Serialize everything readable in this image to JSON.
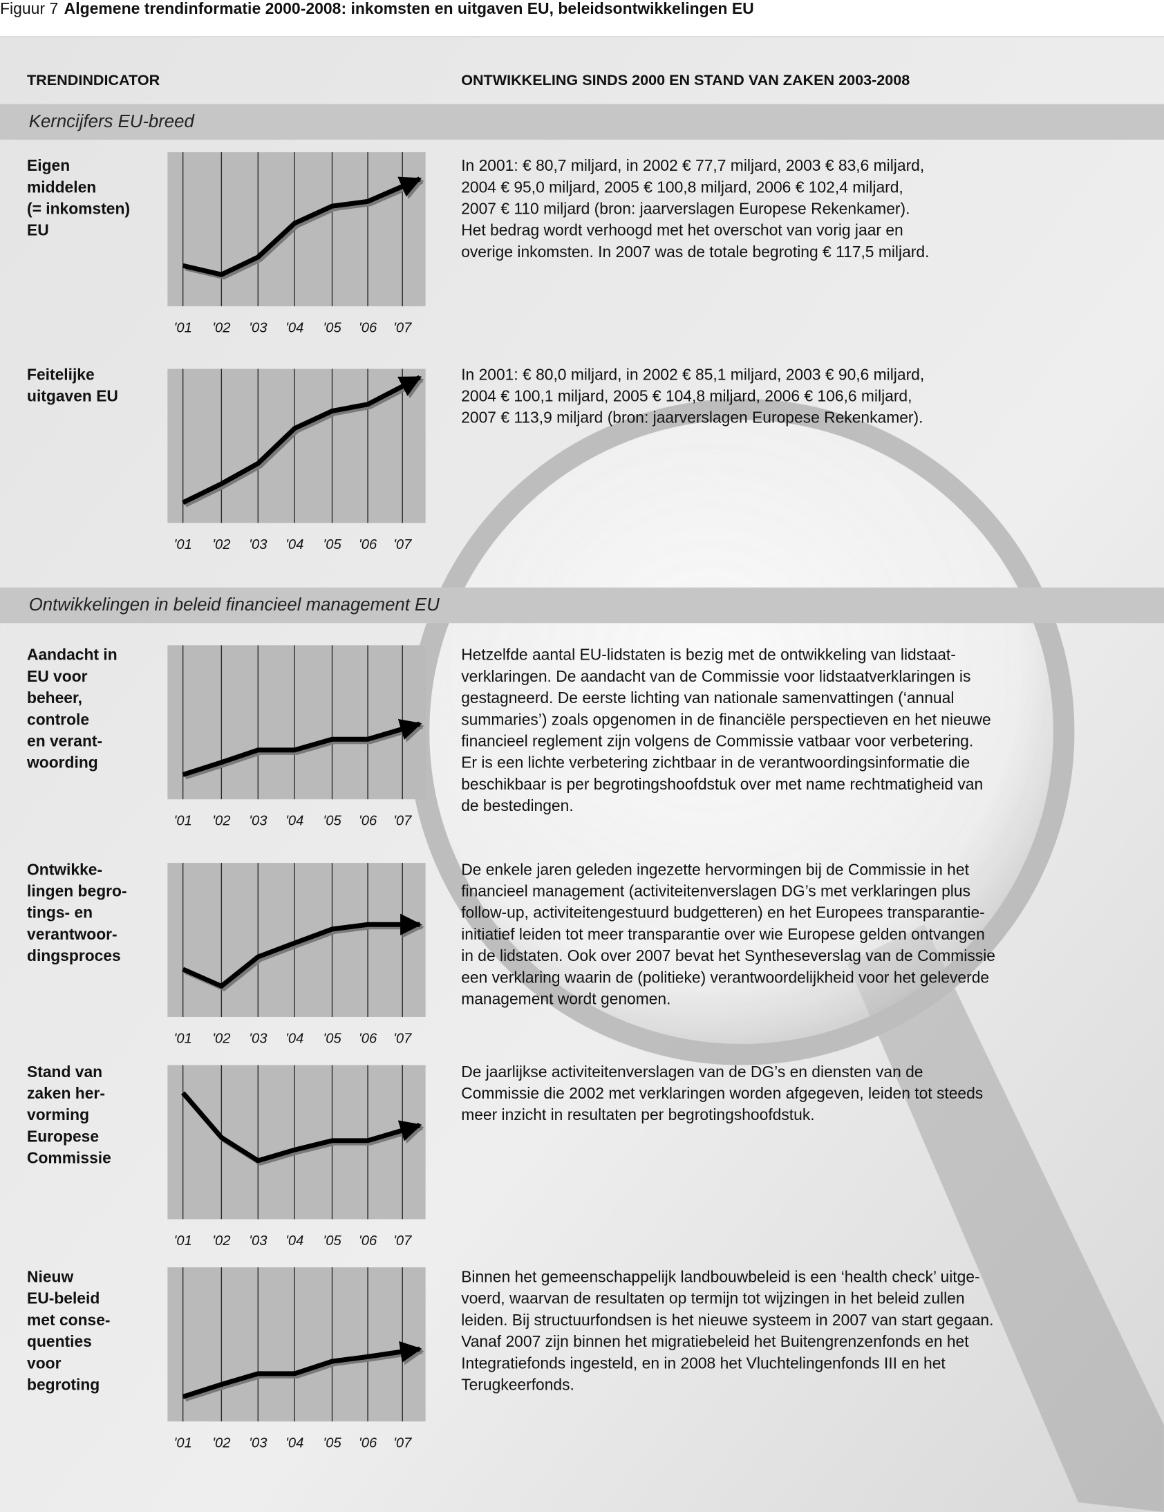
{
  "header": {
    "figure": "Figuur 7",
    "title": "Algemene trendinformatie 2000-2008: inkomsten en uitgaven EU, beleidsontwikkelingen EU"
  },
  "columns": [
    "TRENDINDICATOR",
    "ONTWIKKELING SINDS 2000 EN STAND VAN ZAKEN 2003-2008"
  ],
  "sections": [
    {
      "title": "Kerncijfers EU-breed",
      "rows": [
        {
          "label": [
            "Eigen",
            "middelen",
            "(= inkomsten)",
            "EU"
          ],
          "chart": {
            "type": "line",
            "categories": [
              "'01",
              "'02",
              "'03",
              "'04",
              "'05",
              "'06",
              "'07"
            ],
            "values": [
              80.7,
              77.7,
              83.6,
              95.0,
              100.8,
              102.4,
              110
            ],
            "ylim": [
              67,
              119
            ]
          },
          "text": [
            "In 2001: € 80,7 miljard, in 2002 € 77,7 miljard, 2003 € 83,6 miljard,",
            "2004 € 95,0 miljard, 2005 € 100,8 miljard, 2006 € 102,4 miljard,",
            "2007 € 110 miljard (bron: jaarverslagen Europese Rekenkamer).",
            "Het bedrag wordt verhoogd met het overschot van vorig jaar en",
            "overige inkomsten. In 2007 was de totale begroting € 117,5 miljard."
          ]
        },
        {
          "label": [
            "Feitelijke",
            "uitgaven EU"
          ],
          "chart": {
            "type": "line",
            "categories": [
              "'01",
              "'02",
              "'03",
              "'04",
              "'05",
              "'06",
              "'07"
            ],
            "values": [
              80.0,
              85.1,
              90.6,
              100.1,
              104.8,
              106.6,
              113.9
            ],
            "ylim": [
              74.5,
              116.2
            ]
          },
          "text": [
            "In 2001: € 80,0 miljard, in 2002 € 85,1 miljard, 2003 € 90,6 miljard,",
            "2004 € 100,1 miljard, 2005 € 104,8 miljard, 2006 € 106,6 miljard,",
            "2007 € 113,9 miljard (bron: jaarverslagen Europese Rekenkamer)."
          ]
        }
      ]
    },
    {
      "title": "Ontwikkelingen in beleid financieel management EU",
      "rows": [
        {
          "label": [
            "Aandacht in",
            "EU voor",
            "beheer,",
            "controle",
            "en verant-",
            "woording"
          ],
          "chart": {
            "type": "line",
            "categories": [
              "'01",
              "'02",
              "'03",
              "'04",
              "'05",
              "'06",
              "'07"
            ],
            "values": [
              16,
              24,
              32,
              32,
              39,
              39,
              49
            ],
            "ylim": [
              0,
              100
            ]
          },
          "text": [
            "Hetzelfde aantal EU-lidstaten is bezig met de ontwikkeling van lidstaat-",
            "verklaringen. De aandacht van de Commissie voor lidstaatverklaringen is",
            "gestagneerd. De eerste lichting van nationale samenvattingen (‘annual",
            "summaries’) zoals opgenomen in de financiële perspectieven en het nieuwe",
            "financieel reglement zijn volgens de Commissie vatbaar voor verbetering.",
            "Er is een lichte verbetering zichtbaar in de verantwoordingsinformatie die",
            "beschikbaar is per begrotingshoofdstuk over met name rechtmatigheid van",
            "de bestedingen."
          ]
        },
        {
          "label": [
            "Ontwikke-",
            "lingen begro-",
            "tings- en",
            "verantwoor-",
            "dingsproces"
          ],
          "chart": {
            "type": "line",
            "categories": [
              "'01",
              "'02",
              "'03",
              "'04",
              "'05",
              "'06",
              "'07"
            ],
            "values": [
              31,
              20,
              39,
              48,
              57,
              60,
              60
            ],
            "ylim": [
              0,
              100
            ]
          },
          "text": [
            "De enkele jaren geleden ingezette hervormingen bij de Commissie in het",
            "financieel management (activiteitenverslagen DG’s met verklaringen plus",
            "follow-up, activiteitengestuurd budgetteren) en het Europees transparantie-",
            "initiatief leiden tot meer transparantie over wie Europese gelden ontvangen",
            "in de lidstaten. Ook over 2007 bevat het Syntheseverslag van de Commissie",
            "een verklaring waarin de (politieke) verantwoordelijkheid voor het geleverde",
            "management wordt genomen."
          ]
        },
        {
          "label": [
            "Stand van",
            "zaken her-",
            "vorming",
            "Europese",
            "Commissie"
          ],
          "chart": {
            "type": "line",
            "categories": [
              "'01",
              "'02",
              "'03",
              "'04",
              "'05",
              "'06",
              "'07"
            ],
            "values": [
              82,
              53,
              38,
              45,
              51,
              51,
              61
            ],
            "ylim": [
              0,
              100
            ]
          },
          "text": [
            "De jaarlijkse activiteitenverslagen van de DG’s en diensten van de",
            "Commissie die 2002 met verklaringen worden afgegeven, leiden tot steeds",
            "meer inzicht in resultaten per begrotingshoofdstuk."
          ]
        },
        {
          "label": [
            "Nieuw",
            "EU-beleid",
            "met conse-",
            "quenties",
            "voor",
            "begroting"
          ],
          "chart": {
            "type": "line",
            "categories": [
              "'01",
              "'02",
              "'03",
              "'04",
              "'05",
              "'06",
              "'07"
            ],
            "values": [
              16,
              24,
              31,
              31,
              39,
              42,
              47
            ],
            "ylim": [
              0,
              100
            ]
          },
          "text": [
            "Binnen het gemeenschappelijk landbouwbeleid is een ‘health check’ uitge-",
            "voerd, waarvan de resultaten op termijn tot wijzingen in het beleid zullen",
            "leiden. Bij structuurfondsen is het nieuwe systeem in 2007 van start gegaan.",
            "Vanaf 2007 zijn binnen het migratiebeleid het Buitengrenzenfonds en het",
            "Integratiefonds ingesteld, en in 2008 het Vluchtelingenfonds III en het",
            "Terugkeerfonds."
          ]
        }
      ]
    }
  ]
}
